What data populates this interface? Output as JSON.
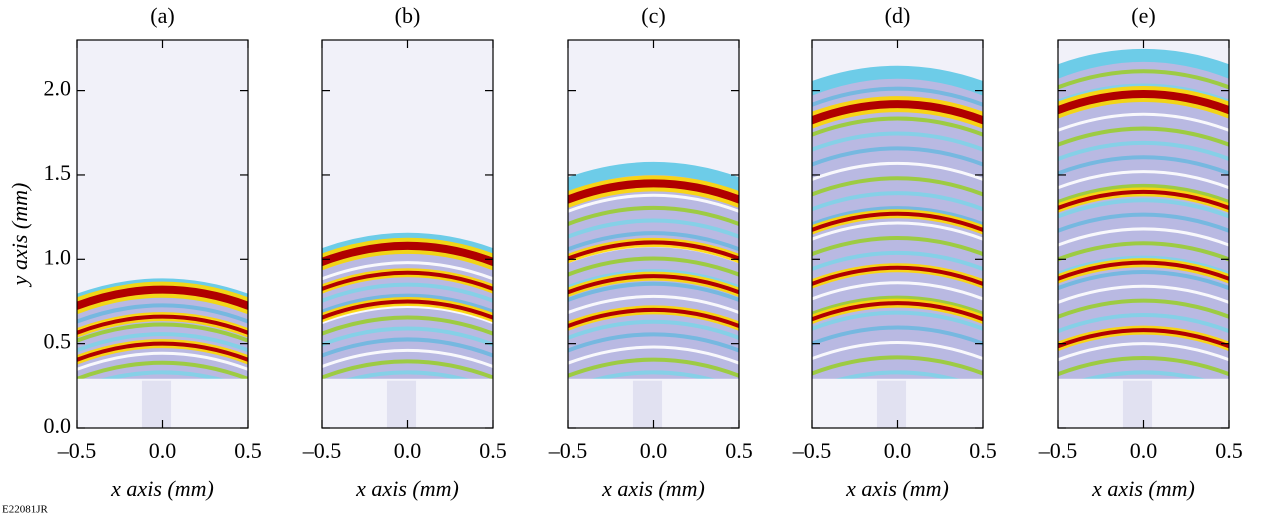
{
  "chart_data": [
    {
      "type": "image",
      "title": "(a)",
      "xlabel": "x axis (mm)",
      "ylabel": "y axis (mm)",
      "xlim": [
        -0.5,
        0.5
      ],
      "ylim": [
        0,
        2.3
      ],
      "xticks": [
        {
          "value": -0.5,
          "label": "–0.5"
        },
        {
          "value": 0,
          "label": "0.0"
        },
        0.5
      ],
      "yticks": [
        {
          "value": 0,
          "label": "0.0"
        },
        0.5,
        {
          "value": 1,
          "label": "1.0"
        },
        1.5,
        {
          "value": 2,
          "label": "2.0"
        }
      ]
    },
    {
      "type": "image",
      "title": "(b)",
      "xlabel": "x axis (mm)",
      "xlim": [
        -0.5,
        0.5
      ],
      "ylim": [
        0,
        2.3
      ],
      "xticks": [
        {
          "value": -0.5,
          "label": "–0.5"
        },
        {
          "value": 0,
          "label": "0.0"
        },
        0.5
      ]
    },
    {
      "type": "image",
      "title": "(c)",
      "xlabel": "x axis (mm)",
      "xlim": [
        -0.5,
        0.5
      ],
      "ylim": [
        0,
        2.3
      ],
      "xticks": [
        {
          "value": -0.5,
          "label": "–0.5"
        },
        {
          "value": 0,
          "label": "0.0"
        },
        0.5
      ]
    },
    {
      "type": "image",
      "title": "(d)",
      "xlabel": "x axis (mm)",
      "xlim": [
        -0.5,
        0.5
      ],
      "ylim": [
        0,
        2.3
      ],
      "xticks": [
        {
          "value": -0.5,
          "label": "–0.5"
        },
        {
          "value": 0,
          "label": "0.0"
        },
        0.5
      ]
    },
    {
      "type": "image",
      "title": "(e)",
      "xlabel": "x axis (mm)",
      "xlim": [
        -0.5,
        0.5
      ],
      "ylim": [
        0,
        2.3
      ],
      "xticks": [
        {
          "value": -0.5,
          "label": "–0.5"
        },
        {
          "value": 0,
          "label": "0.0"
        },
        0.5
      ]
    }
  ],
  "footer": "E22081JR"
}
